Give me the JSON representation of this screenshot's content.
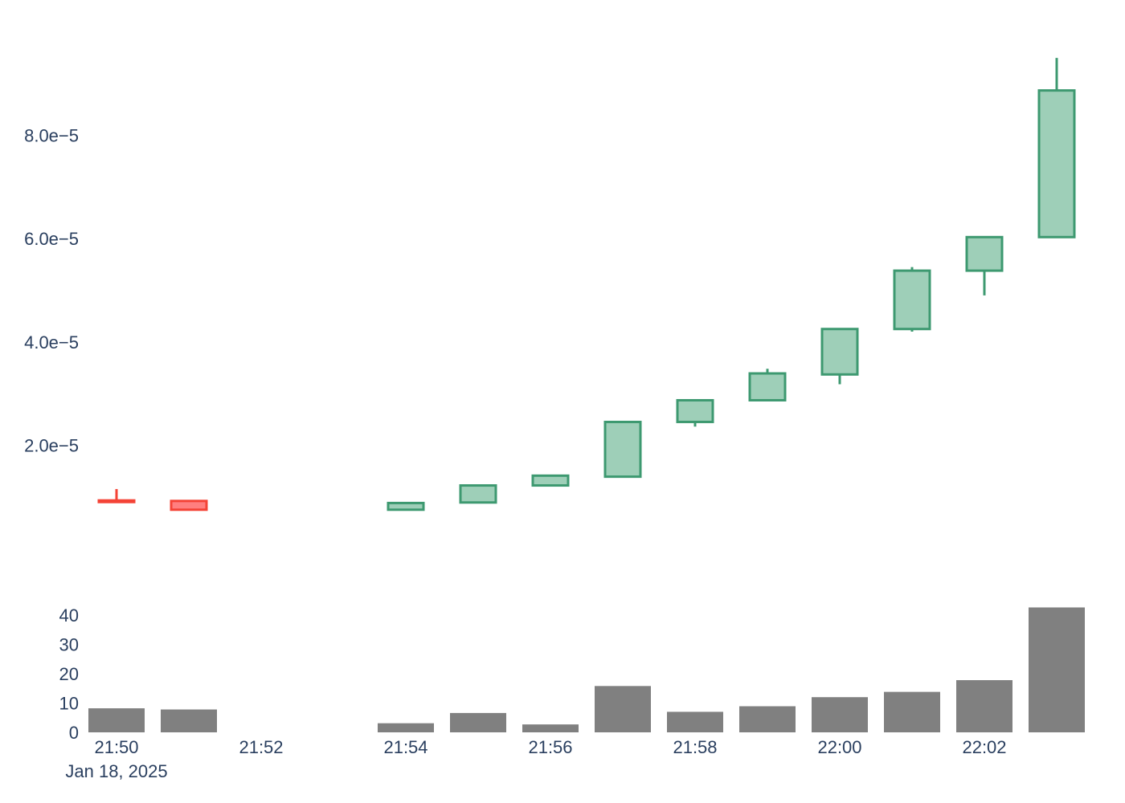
{
  "chart_data": {
    "type": "candlestick",
    "x_labels": [
      "21:50",
      "21:51",
      "21:52",
      "21:53",
      "21:54",
      "21:55",
      "21:56",
      "21:57",
      "21:58",
      "21:59",
      "22:00",
      "22:01",
      "22:02",
      "22:03"
    ],
    "date_label": "Jan 18, 2025",
    "x_ticks": [
      "21:50",
      "21:52",
      "21:54",
      "21:56",
      "21:58",
      "22:00",
      "22:02"
    ],
    "price": {
      "ylim": [
        0.0,
        0.0001
      ],
      "ticks": [
        {
          "value": 2e-05,
          "label": "2.0e−5"
        },
        {
          "value": 4e-05,
          "label": "4.0e−5"
        },
        {
          "value": 6e-05,
          "label": "6.0e−5"
        },
        {
          "value": 8e-05,
          "label": "8.0e−5"
        }
      ],
      "candles": [
        {
          "time": "21:50",
          "open": 9.3e-06,
          "high": 1.15e-05,
          "low": 9.3e-06,
          "close": 9e-06
        },
        {
          "time": "21:51",
          "open": 9.2e-06,
          "high": 9.2e-06,
          "low": 7.5e-06,
          "close": 7.5e-06
        },
        {
          "time": "21:54",
          "open": 7.5e-06,
          "high": 8.8e-06,
          "low": 7.5e-06,
          "close": 8.8e-06
        },
        {
          "time": "21:55",
          "open": 8.9e-06,
          "high": 1.22e-05,
          "low": 8.9e-06,
          "close": 1.22e-05
        },
        {
          "time": "21:56",
          "open": 1.22e-05,
          "high": 1.41e-05,
          "low": 1.22e-05,
          "close": 1.41e-05
        },
        {
          "time": "21:57",
          "open": 1.39e-05,
          "high": 2.45e-05,
          "low": 1.39e-05,
          "close": 2.45e-05
        },
        {
          "time": "21:58",
          "open": 2.45e-05,
          "high": 2.87e-05,
          "low": 2.36e-05,
          "close": 2.87e-05
        },
        {
          "time": "21:59",
          "open": 2.87e-05,
          "high": 3.48e-05,
          "low": 2.87e-05,
          "close": 3.39e-05
        },
        {
          "time": "22:00",
          "open": 3.37e-05,
          "high": 4.25e-05,
          "low": 3.18e-05,
          "close": 4.25e-05
        },
        {
          "time": "22:01",
          "open": 4.25e-05,
          "high": 5.45e-05,
          "low": 4.2e-05,
          "close": 5.38e-05
        },
        {
          "time": "22:02",
          "open": 5.38e-05,
          "high": 6.03e-05,
          "low": 4.9e-05,
          "close": 6.03e-05
        },
        {
          "time": "22:03",
          "open": 6.03e-05,
          "high": 9.5e-05,
          "low": 6.03e-05,
          "close": 8.87e-05
        }
      ]
    },
    "volume": {
      "ylim": [
        0,
        43
      ],
      "ticks": [
        0,
        10,
        20,
        30,
        40
      ],
      "bars": [
        {
          "time": "21:50",
          "value": 8.2
        },
        {
          "time": "21:51",
          "value": 7.8
        },
        {
          "time": "21:54",
          "value": 3.1
        },
        {
          "time": "21:55",
          "value": 6.6
        },
        {
          "time": "21:56",
          "value": 2.7
        },
        {
          "time": "21:57",
          "value": 15.8
        },
        {
          "time": "21:58",
          "value": 7.0
        },
        {
          "time": "21:59",
          "value": 8.9
        },
        {
          "time": "22:00",
          "value": 12.0
        },
        {
          "time": "22:01",
          "value": 13.8
        },
        {
          "time": "22:02",
          "value": 17.8
        },
        {
          "time": "22:03",
          "value": 42.6
        }
      ]
    },
    "colors": {
      "increasing_line": "#3d9970",
      "increasing_fill": "#9ecfb8",
      "decreasing_line": "#f44336",
      "decreasing_fill": "#ff7f7f",
      "volume_bar": "#808080",
      "tick_text": "#2a3f5f"
    }
  }
}
